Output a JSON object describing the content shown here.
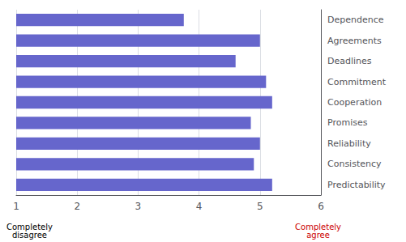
{
  "chart_data": {
    "type": "bar",
    "orientation": "horizontal",
    "categories": [
      "Predictability",
      "Consistency",
      "Reliability",
      "Promises",
      "Cooperation",
      "Commitment",
      "Deadlines",
      "Agreements",
      "Dependence"
    ],
    "values": [
      5.2,
      4.9,
      5.0,
      4.85,
      5.2,
      5.1,
      4.6,
      5.0,
      3.75
    ],
    "color": "#6666cc",
    "xlim": [
      1,
      6
    ],
    "xticks": [
      1,
      2,
      3,
      4,
      5,
      6
    ],
    "grid": true,
    "annotations": [
      {
        "text": "Completely\ndisagree",
        "color": "#000000"
      },
      {
        "text": "Completely\nagree",
        "color": "#cc0000"
      }
    ]
  }
}
